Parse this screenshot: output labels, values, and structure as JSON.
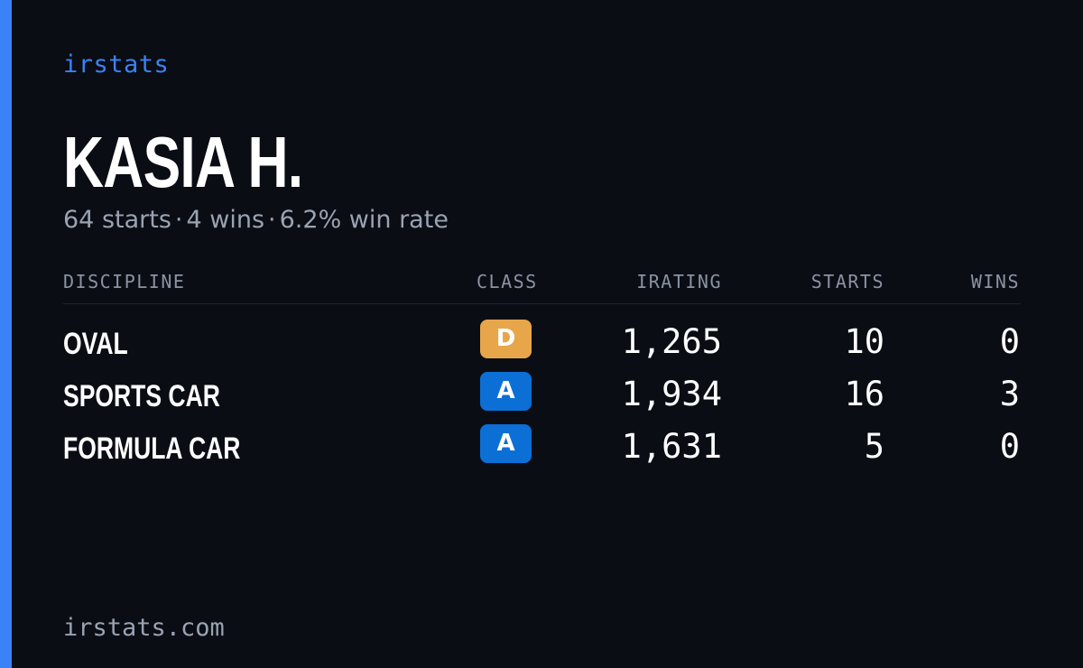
{
  "brand": "irstats",
  "driver": {
    "name": "KASIA H.",
    "starts": "64 starts",
    "wins": "4 wins",
    "win_rate": "6.2% win rate",
    "separator": "·"
  },
  "table": {
    "headers": {
      "discipline": "DISCIPLINE",
      "class": "CLASS",
      "irating": "IRATING",
      "starts": "STARTS",
      "wins": "WINS"
    },
    "rows": [
      {
        "discipline": "OVAL",
        "class": "D",
        "class_color": "#e8a64a",
        "irating": "1,265",
        "starts": "10",
        "wins": "0"
      },
      {
        "discipline": "SPORTS CAR",
        "class": "A",
        "class_color": "#0b6fd6",
        "irating": "1,934",
        "starts": "16",
        "wins": "3"
      },
      {
        "discipline": "FORMULA CAR",
        "class": "A",
        "class_color": "#0b6fd6",
        "irating": "1,631",
        "starts": "5",
        "wins": "0"
      }
    ]
  },
  "footer": "irstats.com",
  "colors": {
    "accent": "#3b82f6",
    "background": "#0a0d14"
  }
}
